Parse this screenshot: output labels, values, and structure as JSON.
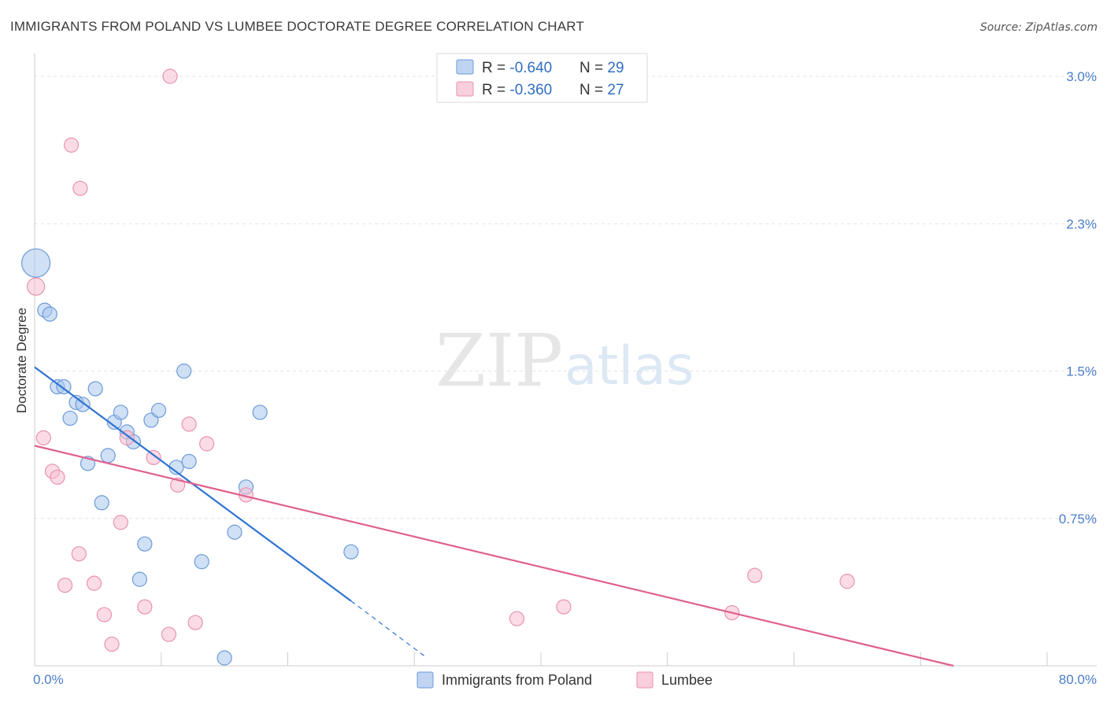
{
  "chart_data": {
    "type": "scatter",
    "title": "IMMIGRANTS FROM POLAND VS LUMBEE DOCTORATE DEGREE CORRELATION CHART",
    "source": "Source: ZipAtlas.com",
    "ylabel": "Doctorate Degree",
    "xlabel": "",
    "xlim": [
      0,
      80
    ],
    "ylim": [
      0,
      3.1
    ],
    "x_tick_labels": [
      "0.0%",
      "80.0%"
    ],
    "y_ticks": [
      {
        "value": 3.0,
        "label": "3.0%"
      },
      {
        "value": 2.25,
        "label": "2.3%"
      },
      {
        "value": 1.5,
        "label": "1.5%"
      },
      {
        "value": 0.75,
        "label": "0.75%"
      }
    ],
    "grid": true,
    "watermark": {
      "zip": "ZIP",
      "atlas": "atlas"
    },
    "legend_position": "top-center",
    "stats": [
      {
        "r_label": "R = ",
        "r_value": "-0.640",
        "n_label": "N = ",
        "n_value": "29"
      },
      {
        "r_label": "R = ",
        "r_value": "-0.360",
        "n_label": "N = ",
        "n_value": "27"
      }
    ],
    "series": [
      {
        "name": "Immigrants from Poland",
        "color": "#a9c6ec",
        "stroke": "#6b9bd8",
        "line_color": "#2f74d0",
        "trend": {
          "x0": 0,
          "y0": 1.52,
          "x1": 25,
          "y1": 0.33,
          "dashed_to_x": 31,
          "dashed_to_y": 0.04
        },
        "points": [
          {
            "x": 0.1,
            "y": 2.05,
            "size": 18
          },
          {
            "x": 0.8,
            "y": 1.81,
            "size": 9
          },
          {
            "x": 1.2,
            "y": 1.79,
            "size": 9
          },
          {
            "x": 1.8,
            "y": 1.42,
            "size": 9
          },
          {
            "x": 2.3,
            "y": 1.42,
            "size": 9
          },
          {
            "x": 2.8,
            "y": 1.26,
            "size": 9
          },
          {
            "x": 3.3,
            "y": 1.34,
            "size": 9
          },
          {
            "x": 3.8,
            "y": 1.33,
            "size": 9
          },
          {
            "x": 4.2,
            "y": 1.03,
            "size": 9
          },
          {
            "x": 4.8,
            "y": 1.41,
            "size": 9
          },
          {
            "x": 5.3,
            "y": 0.83,
            "size": 9
          },
          {
            "x": 5.8,
            "y": 1.07,
            "size": 9
          },
          {
            "x": 6.3,
            "y": 1.24,
            "size": 9
          },
          {
            "x": 6.8,
            "y": 1.29,
            "size": 9
          },
          {
            "x": 7.3,
            "y": 1.19,
            "size": 9
          },
          {
            "x": 7.8,
            "y": 1.14,
            "size": 9
          },
          {
            "x": 8.3,
            "y": 0.44,
            "size": 9
          },
          {
            "x": 8.7,
            "y": 0.62,
            "size": 9
          },
          {
            "x": 9.2,
            "y": 1.25,
            "size": 9
          },
          {
            "x": 9.8,
            "y": 1.3,
            "size": 9
          },
          {
            "x": 11.2,
            "y": 1.01,
            "size": 9
          },
          {
            "x": 11.8,
            "y": 1.5,
            "size": 9
          },
          {
            "x": 12.2,
            "y": 1.04,
            "size": 9
          },
          {
            "x": 13.2,
            "y": 0.53,
            "size": 9
          },
          {
            "x": 15.0,
            "y": 0.04,
            "size": 9
          },
          {
            "x": 15.8,
            "y": 0.68,
            "size": 9
          },
          {
            "x": 16.7,
            "y": 0.91,
            "size": 9
          },
          {
            "x": 17.8,
            "y": 1.29,
            "size": 9
          },
          {
            "x": 25.0,
            "y": 0.58,
            "size": 9
          }
        ]
      },
      {
        "name": "Lumbee",
        "color": "#f7bfd1",
        "stroke": "#e892b0",
        "line_color": "#e0608f",
        "trend": {
          "x0": 0,
          "y0": 1.12,
          "x1": 72.6,
          "y1": 0.0
        },
        "points": [
          {
            "x": 0.1,
            "y": 1.93,
            "size": 11
          },
          {
            "x": 0.7,
            "y": 1.16,
            "size": 9
          },
          {
            "x": 1.4,
            "y": 0.99,
            "size": 9
          },
          {
            "x": 1.8,
            "y": 0.96,
            "size": 9
          },
          {
            "x": 2.4,
            "y": 0.41,
            "size": 9
          },
          {
            "x": 2.9,
            "y": 2.65,
            "size": 9
          },
          {
            "x": 3.5,
            "y": 0.57,
            "size": 9
          },
          {
            "x": 3.6,
            "y": 2.43,
            "size": 9
          },
          {
            "x": 4.7,
            "y": 0.42,
            "size": 9
          },
          {
            "x": 5.5,
            "y": 0.26,
            "size": 9
          },
          {
            "x": 6.1,
            "y": 0.11,
            "size": 9
          },
          {
            "x": 6.8,
            "y": 0.73,
            "size": 9
          },
          {
            "x": 7.3,
            "y": 1.16,
            "size": 9
          },
          {
            "x": 8.7,
            "y": 0.3,
            "size": 9
          },
          {
            "x": 9.4,
            "y": 1.06,
            "size": 9
          },
          {
            "x": 10.7,
            "y": 3.0,
            "size": 9
          },
          {
            "x": 10.6,
            "y": 0.16,
            "size": 9
          },
          {
            "x": 11.3,
            "y": 0.92,
            "size": 9
          },
          {
            "x": 12.2,
            "y": 1.23,
            "size": 9
          },
          {
            "x": 12.7,
            "y": 0.22,
            "size": 9
          },
          {
            "x": 13.6,
            "y": 1.13,
            "size": 9
          },
          {
            "x": 16.7,
            "y": 0.87,
            "size": 9
          },
          {
            "x": 38.1,
            "y": 0.24,
            "size": 9
          },
          {
            "x": 41.8,
            "y": 0.3,
            "size": 9
          },
          {
            "x": 55.1,
            "y": 0.27,
            "size": 9
          },
          {
            "x": 56.9,
            "y": 0.46,
            "size": 9
          },
          {
            "x": 64.2,
            "y": 0.43,
            "size": 9
          }
        ]
      }
    ]
  }
}
